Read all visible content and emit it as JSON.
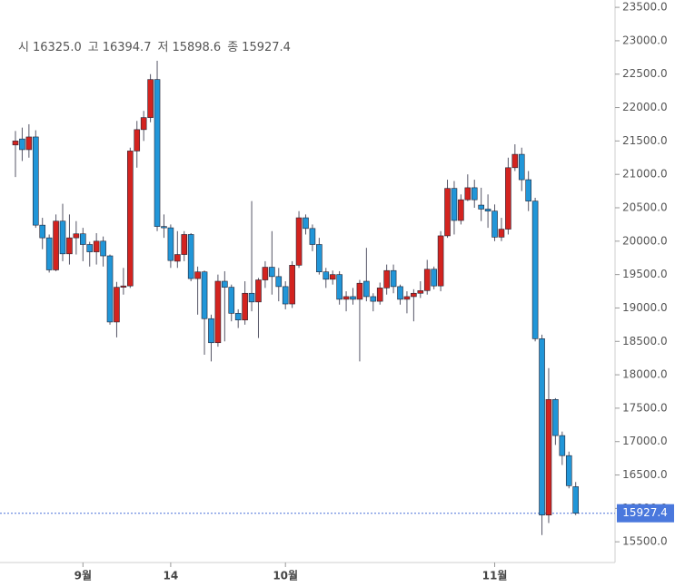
{
  "chart_data": {
    "type": "candlestick",
    "header": [
      {
        "label": "시",
        "value": "16325.0"
      },
      {
        "label": "고",
        "value": "16394.7"
      },
      {
        "label": "저",
        "value": "15898.6"
      },
      {
        "label": "종",
        "value": "15927.4"
      }
    ],
    "categories": [
      null,
      null,
      null,
      null,
      null,
      null,
      null,
      null,
      null,
      null,
      "9월",
      null,
      null,
      null,
      null,
      null,
      null,
      null,
      null,
      null,
      null,
      null,
      null,
      "14",
      null,
      null,
      null,
      null,
      null,
      null,
      null,
      null,
      null,
      null,
      null,
      null,
      null,
      null,
      null,
      null,
      "10월",
      null,
      null,
      null,
      null,
      null,
      null,
      null,
      null,
      null,
      null,
      null,
      null,
      null,
      null,
      null,
      null,
      null,
      null,
      null,
      null,
      null,
      null,
      null,
      null,
      null,
      null,
      null,
      null,
      null,
      null,
      "11월",
      null,
      null,
      null,
      null,
      null,
      null,
      null,
      null,
      null,
      null,
      null,
      null
    ],
    "open": [
      21440,
      21530,
      21370,
      21560,
      20240,
      20050,
      19570,
      20300,
      19810,
      20050,
      20110,
      19950,
      19840,
      20000,
      19780,
      18790,
      19310,
      19330,
      21350,
      21670,
      21850,
      22420,
      20220,
      20200,
      19700,
      19800,
      20100,
      19440,
      19540,
      18840,
      18480,
      19400,
      19310,
      18920,
      18820,
      19220,
      19090,
      19420,
      19610,
      19470,
      19320,
      19060,
      19640,
      20350,
      20190,
      19950,
      19540,
      19430,
      19500,
      19130,
      19170,
      19130,
      19400,
      19170,
      19100,
      19300,
      19560,
      19320,
      19130,
      19170,
      19220,
      19260,
      19580,
      19330,
      20080,
      20790,
      20310,
      20620,
      20800,
      20540,
      20480,
      20450,
      20060,
      20180,
      21100,
      21300,
      20920,
      20600,
      18540,
      15900,
      17630,
      17090,
      16790,
      16325
    ],
    "high": [
      21650,
      21700,
      21750,
      21660,
      20350,
      20100,
      20400,
      20560,
      20400,
      20300,
      20200,
      19990,
      20120,
      20070,
      19800,
      19390,
      19600,
      21400,
      21800,
      21950,
      22500,
      22700,
      20400,
      20250,
      20150,
      20150,
      20120,
      19620,
      19560,
      18900,
      19500,
      19550,
      19350,
      18980,
      19400,
      20600,
      19450,
      19700,
      20150,
      19600,
      19400,
      19700,
      20450,
      20400,
      20250,
      20050,
      19600,
      19560,
      19550,
      19250,
      19300,
      19420,
      19900,
      19220,
      19380,
      19650,
      19650,
      19350,
      19250,
      19280,
      19400,
      19720,
      19620,
      20150,
      20920,
      20900,
      20700,
      21000,
      20920,
      20800,
      20700,
      20550,
      20350,
      21250,
      21450,
      21400,
      21050,
      20650,
      18600,
      18100,
      17650,
      17150,
      16850,
      16394.7
    ],
    "low": [
      20960,
      21200,
      21250,
      20200,
      19880,
      19530,
      19550,
      19700,
      19650,
      19800,
      19700,
      19620,
      19650,
      19620,
      18750,
      18560,
      19200,
      19300,
      21100,
      21500,
      21780,
      20150,
      20050,
      19600,
      19600,
      19700,
      19400,
      18900,
      18300,
      18200,
      18420,
      18500,
      18800,
      18700,
      18750,
      18950,
      18550,
      19300,
      19200,
      19100,
      18980,
      19000,
      19600,
      20100,
      19850,
      19500,
      19300,
      19350,
      19050,
      18950,
      19050,
      18200,
      19100,
      18950,
      19050,
      19200,
      19220,
      19050,
      18920,
      18800,
      19150,
      19200,
      19280,
      19250,
      20050,
      20100,
      20250,
      20600,
      20500,
      20300,
      20200,
      20000,
      20000,
      20100,
      21050,
      20750,
      20450,
      18500,
      15600,
      15780,
      16950,
      16650,
      16300,
      15898.6
    ],
    "close": [
      21500,
      21370,
      21560,
      20240,
      20050,
      19570,
      20300,
      19810,
      20050,
      20110,
      19950,
      19840,
      20000,
      19780,
      18790,
      19310,
      19330,
      21350,
      21670,
      21850,
      22420,
      20220,
      20200,
      19710,
      19800,
      20100,
      19440,
      19540,
      18840,
      18480,
      19400,
      19310,
      18920,
      18820,
      19220,
      19090,
      19420,
      19610,
      19470,
      19320,
      19060,
      19640,
      20350,
      20190,
      19950,
      19540,
      19430,
      19500,
      19130,
      19170,
      19130,
      19370,
      19170,
      19100,
      19300,
      19560,
      19320,
      19130,
      19170,
      19220,
      19260,
      19580,
      19330,
      20080,
      20790,
      20310,
      20620,
      20800,
      20620,
      20480,
      20450,
      20060,
      20180,
      21100,
      21300,
      20920,
      20600,
      18540,
      15900,
      17630,
      17090,
      16790,
      16340,
      15927.4
    ],
    "up_color": "#d3231f",
    "down_color": "#2196d8",
    "last_price": {
      "value": 15927.4,
      "label": "15927.4"
    },
    "ylim": [
      15190,
      23610
    ],
    "yticks": [
      {
        "value": 15500,
        "label": "15500.0"
      },
      {
        "value": 16000,
        "label": "16000.0"
      },
      {
        "value": 16500,
        "label": "16500.0"
      },
      {
        "value": 17000,
        "label": "17000.0"
      },
      {
        "value": 17500,
        "label": "17500.0"
      },
      {
        "value": 18000,
        "label": "18000.0"
      },
      {
        "value": 18500,
        "label": "18500.0"
      },
      {
        "value": 19000,
        "label": "19000.0"
      },
      {
        "value": 19500,
        "label": "19500.0"
      },
      {
        "value": 20000,
        "label": "20000.0"
      },
      {
        "value": 20500,
        "label": "20500.0"
      },
      {
        "value": 21000,
        "label": "21000.0"
      },
      {
        "value": 21500,
        "label": "21500.0"
      },
      {
        "value": 22000,
        "label": "22000.0"
      },
      {
        "value": 22500,
        "label": "22500.0"
      },
      {
        "value": 23000,
        "label": "23000.0"
      },
      {
        "value": 23500,
        "label": "23500.0"
      }
    ]
  }
}
